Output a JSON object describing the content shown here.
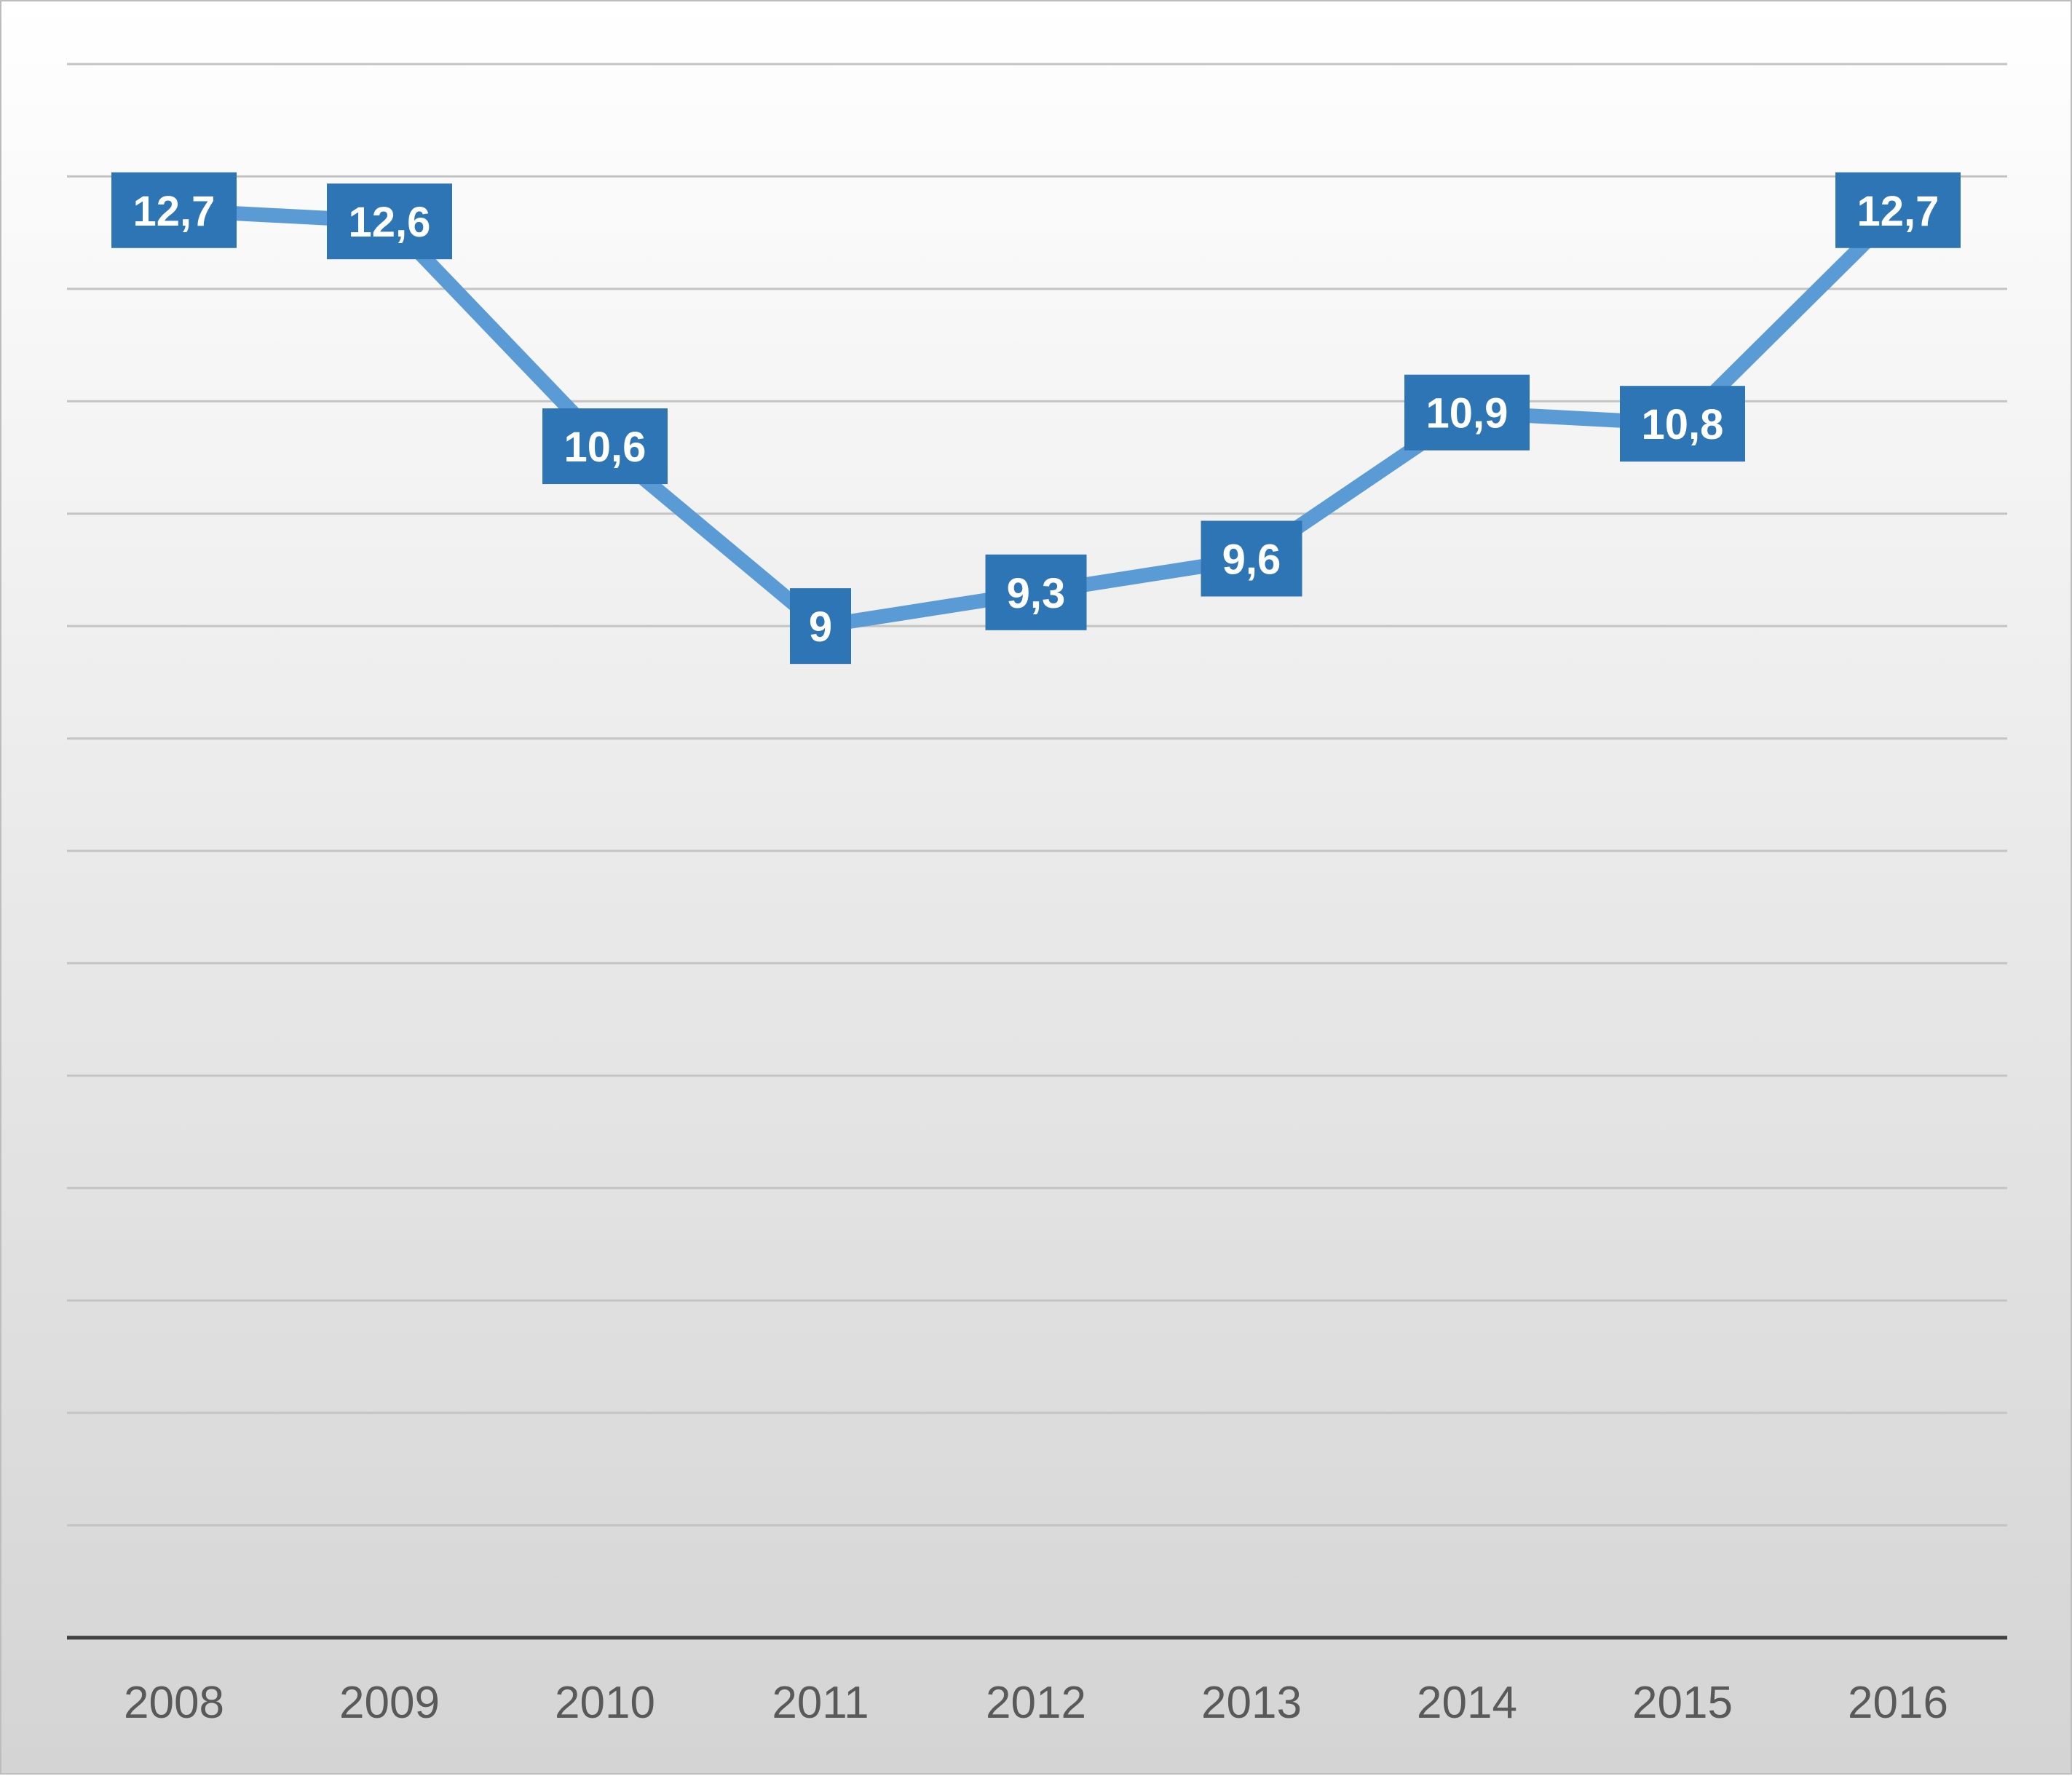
{
  "chart_data": {
    "type": "line",
    "categories": [
      "2008",
      "2009",
      "2010",
      "2011",
      "2012",
      "2013",
      "2014",
      "2015",
      "2016"
    ],
    "series": [
      {
        "values": [
          12.7,
          12.6,
          10.6,
          9,
          9.3,
          9.6,
          10.9,
          10.8,
          12.7
        ],
        "data_labels": [
          "12,7",
          "12,6",
          "10,6",
          "9",
          "9,3",
          "9,6",
          "10,9",
          "10,8",
          "12,7"
        ],
        "color": "#5b9bd5",
        "label_color": "#2e75b6"
      }
    ],
    "title": "",
    "xlabel": "",
    "ylabel": "",
    "ylim": [
      0,
      14
    ],
    "y_gridline_step": 1,
    "grid": true,
    "legend": "none"
  }
}
